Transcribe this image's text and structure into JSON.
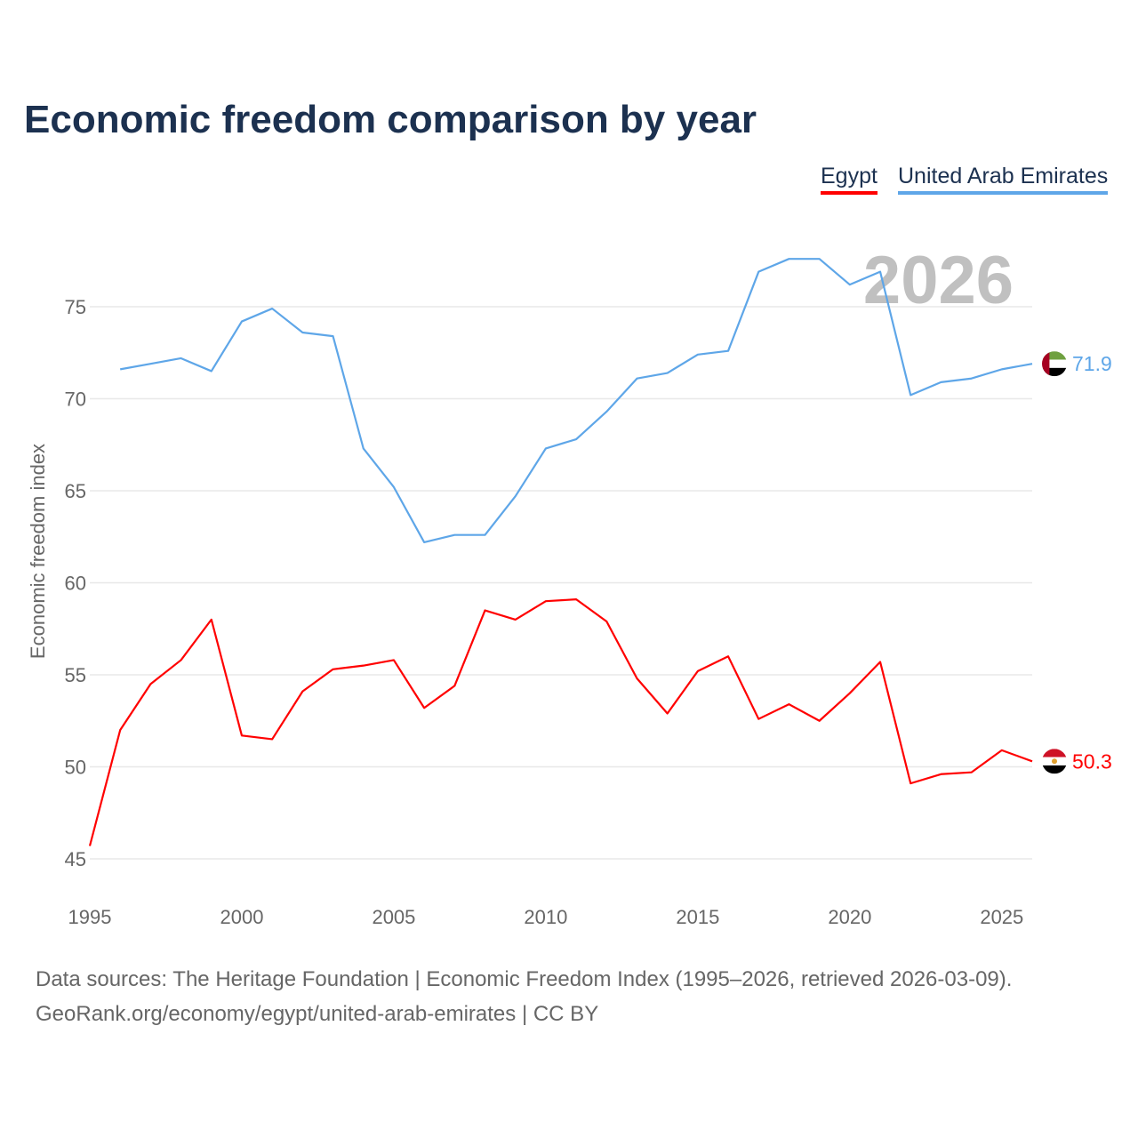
{
  "chart_data": {
    "type": "line",
    "title": "Economic freedom comparison by year",
    "xlabel": "",
    "ylabel": "Economic freedom index",
    "xlim": [
      1995,
      2026
    ],
    "ylim": [
      43,
      80
    ],
    "yticks": [
      45,
      50,
      55,
      60,
      65,
      70,
      75
    ],
    "xticks": [
      1995,
      2000,
      2005,
      2010,
      2015,
      2020,
      2025
    ],
    "grid": true,
    "legend_placement": "top-right",
    "year_label": "2026",
    "series": [
      {
        "name": "Egypt",
        "color": "#ff0000",
        "end_label": "50.3",
        "flag": "egypt-flag",
        "x": [
          1995,
          1996,
          1997,
          1998,
          1999,
          2000,
          2001,
          2002,
          2003,
          2004,
          2005,
          2006,
          2007,
          2008,
          2009,
          2010,
          2011,
          2012,
          2013,
          2014,
          2015,
          2016,
          2017,
          2018,
          2019,
          2020,
          2021,
          2022,
          2023,
          2024,
          2025,
          2026
        ],
        "values": [
          45.7,
          52.0,
          54.5,
          55.8,
          58.0,
          51.7,
          51.5,
          54.1,
          55.3,
          55.5,
          55.8,
          53.2,
          54.4,
          58.5,
          58.0,
          59.0,
          59.1,
          57.9,
          54.8,
          52.9,
          55.2,
          56.0,
          52.6,
          53.4,
          52.5,
          54.0,
          55.7,
          49.1,
          49.6,
          49.7,
          50.9,
          50.3
        ]
      },
      {
        "name": "United Arab Emirates",
        "color": "#5ea6e8",
        "end_label": "71.9",
        "flag": "uae-flag",
        "x": [
          1996,
          1997,
          1998,
          1999,
          2000,
          2001,
          2002,
          2003,
          2004,
          2005,
          2006,
          2007,
          2008,
          2009,
          2010,
          2011,
          2012,
          2013,
          2014,
          2015,
          2016,
          2017,
          2018,
          2019,
          2020,
          2021,
          2022,
          2023,
          2024,
          2025,
          2026
        ],
        "values": [
          71.6,
          71.9,
          72.2,
          71.5,
          74.2,
          74.9,
          73.6,
          73.4,
          67.3,
          65.2,
          62.2,
          62.6,
          62.6,
          64.7,
          67.3,
          67.8,
          69.3,
          71.1,
          71.4,
          72.4,
          72.6,
          76.9,
          77.6,
          77.6,
          76.2,
          76.9,
          70.2,
          70.9,
          71.1,
          71.6,
          71.9
        ]
      }
    ]
  },
  "footer": {
    "line1": "Data sources: The Heritage Foundation | Economic Freedom Index (1995–2026, retrieved 2026-03-09).",
    "line2": "GeoRank.org/economy/egypt/united-arab-emirates | CC BY"
  }
}
